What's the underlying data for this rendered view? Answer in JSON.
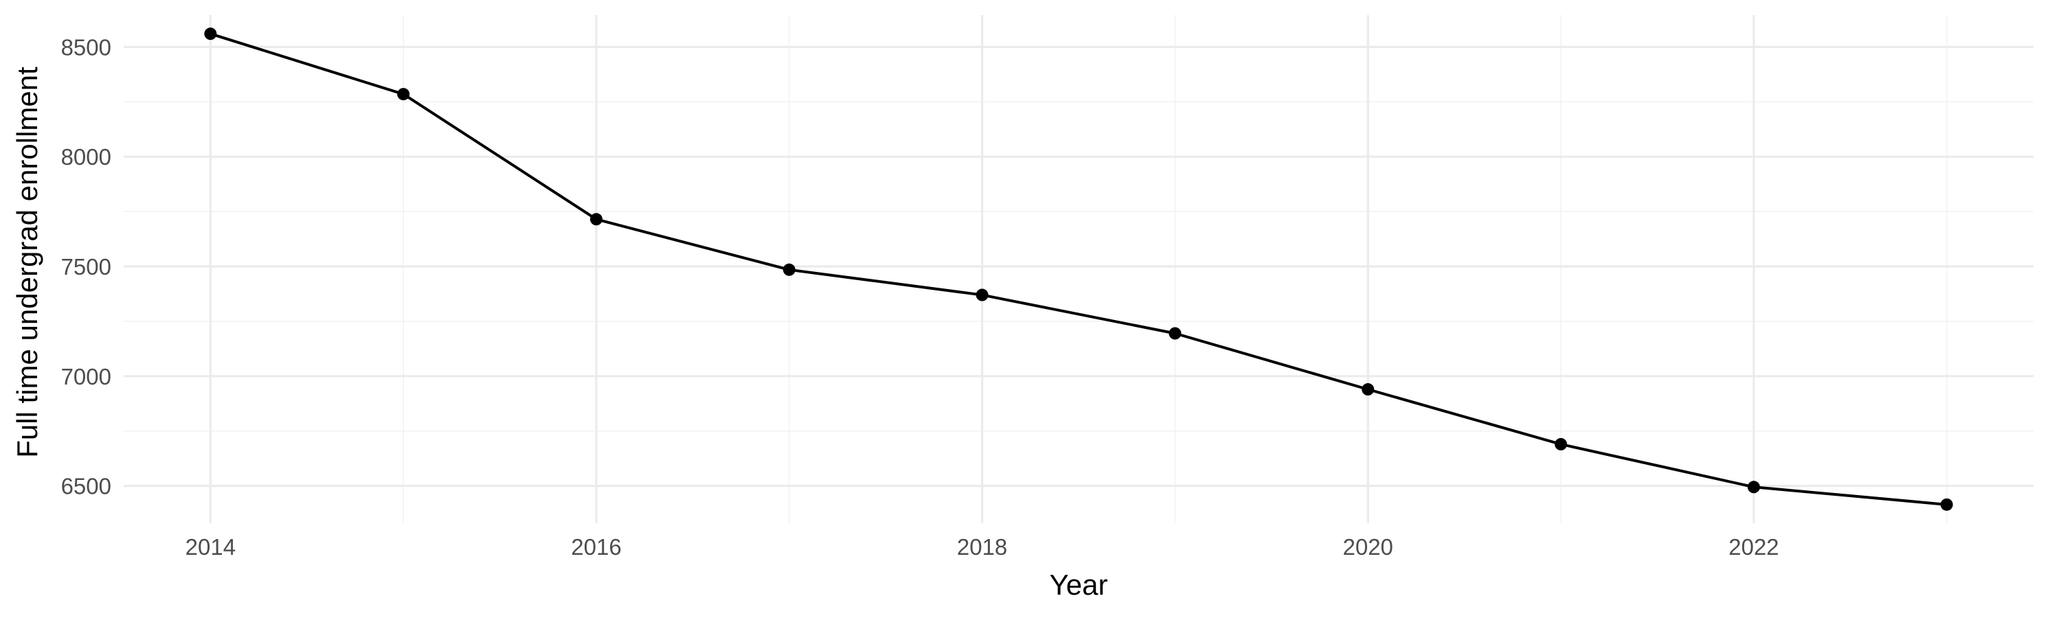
{
  "chart_data": {
    "type": "line",
    "title": "",
    "xlabel": "Year",
    "ylabel": "Full time undergrad enrollment",
    "x": [
      2014,
      2015,
      2016,
      2017,
      2018,
      2019,
      2020,
      2021,
      2022,
      2023
    ],
    "series": [
      {
        "values": [
          8560,
          8285,
          7715,
          7485,
          7370,
          7195,
          6940,
          6690,
          6495,
          6415
        ],
        "color": "#000000"
      }
    ],
    "xlim": [
      2013.55,
      2023.45
    ],
    "ylim": [
      6330,
      8645
    ],
    "x_ticks": [
      2014,
      2016,
      2018,
      2020,
      2022
    ],
    "x_tick_labels": [
      "2014",
      "2016",
      "2018",
      "2020",
      "2022"
    ],
    "y_ticks": [
      6500,
      7000,
      7500,
      8000,
      8500
    ],
    "y_tick_labels": [
      "6500",
      "7000",
      "7500",
      "8000",
      "8500"
    ],
    "grid": true,
    "legend": "none",
    "markers": "filled-circle"
  }
}
